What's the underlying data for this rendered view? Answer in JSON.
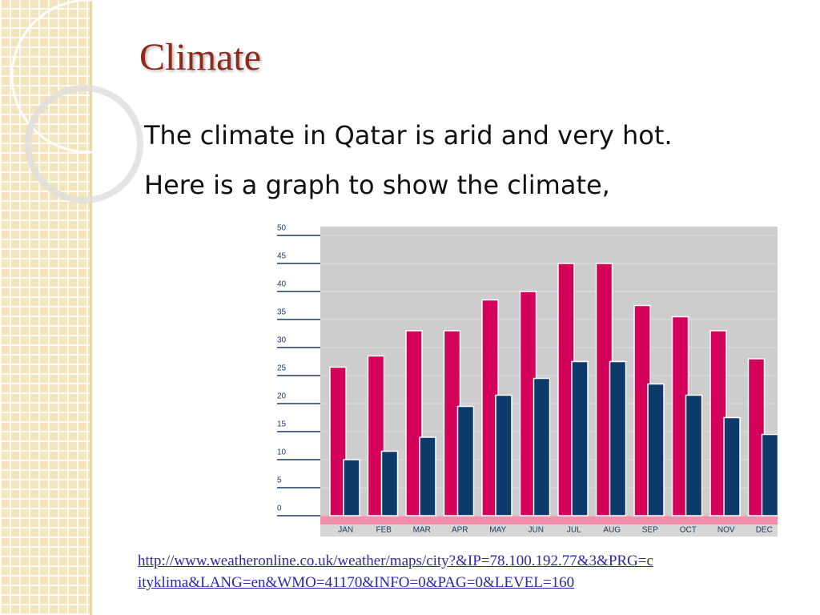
{
  "title": "Climate",
  "body": [
    "The climate in Qatar is arid and very hot.",
    "Here is a graph to show the climate,"
  ],
  "source": [
    "http://www.weatheronline.co.uk/weather/maps/city?&IP=78.100.192.77&3&PRG=c",
    "ityklima&LANG=en&WMO=41170&INFO=0&PAG=0&LEVEL=160"
  ],
  "chart_data": {
    "type": "bar",
    "categories": [
      "JAN",
      "FEB",
      "MAR",
      "APR",
      "MAY",
      "JUN",
      "JUL",
      "AUG",
      "SEP",
      "OCT",
      "NOV",
      "DEC"
    ],
    "series": [
      {
        "color": "#d4005a",
        "values": [
          26.5,
          28.5,
          33,
          33,
          38.5,
          40,
          45,
          45,
          37.5,
          35.5,
          33,
          28
        ]
      },
      {
        "color": "#0d3a6b",
        "values": [
          10,
          11.5,
          14,
          19.5,
          21.5,
          24.5,
          27.5,
          27.5,
          23.5,
          21.5,
          17.5,
          14.5
        ]
      }
    ],
    "ylim": [
      0,
      50
    ],
    "yticks": [
      0,
      5,
      10,
      15,
      20,
      25,
      30,
      35,
      40,
      45,
      50
    ],
    "grid": true
  }
}
